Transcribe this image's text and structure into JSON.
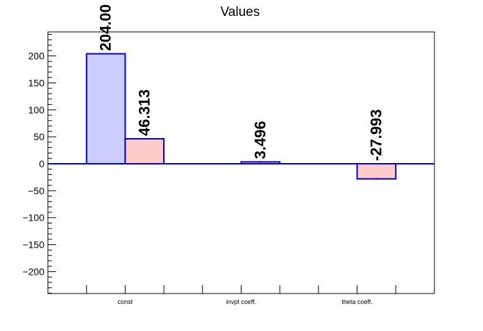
{
  "chart_data": {
    "type": "bar",
    "title": "Values",
    "xlabel": "",
    "ylabel": "",
    "ylim": [
      -245,
      245
    ],
    "yticks": [
      -200,
      -150,
      -100,
      -50,
      0,
      50,
      100,
      150,
      200
    ],
    "ytick_labels": [
      "−200",
      "−150",
      "−100",
      "−50",
      "0",
      "50",
      "100",
      "150",
      "200"
    ],
    "categories": [
      "const",
      "invpt coeff.",
      "theta coeff."
    ],
    "bars": [
      {
        "category": "const",
        "slot": 0,
        "value": 204.0,
        "label": "204.00",
        "fill": "#ccccff"
      },
      {
        "category": "const",
        "slot": 1,
        "value": 46.313,
        "label": "46.313",
        "fill": "#ffcccc"
      },
      {
        "category": "invpt coeff.",
        "slot": 1,
        "value": 3.496,
        "label": "3.496",
        "fill": "#ffcccc"
      },
      {
        "category": "theta coeff.",
        "slot": 1,
        "value": -27.993,
        "label": "-27.993",
        "fill": "#ffcccc"
      }
    ],
    "colors": {
      "bar_outline": "#0000cc",
      "series_a_fill": "#ccccff",
      "series_b_fill": "#ffcccc"
    },
    "grid": false,
    "legend": "none"
  }
}
